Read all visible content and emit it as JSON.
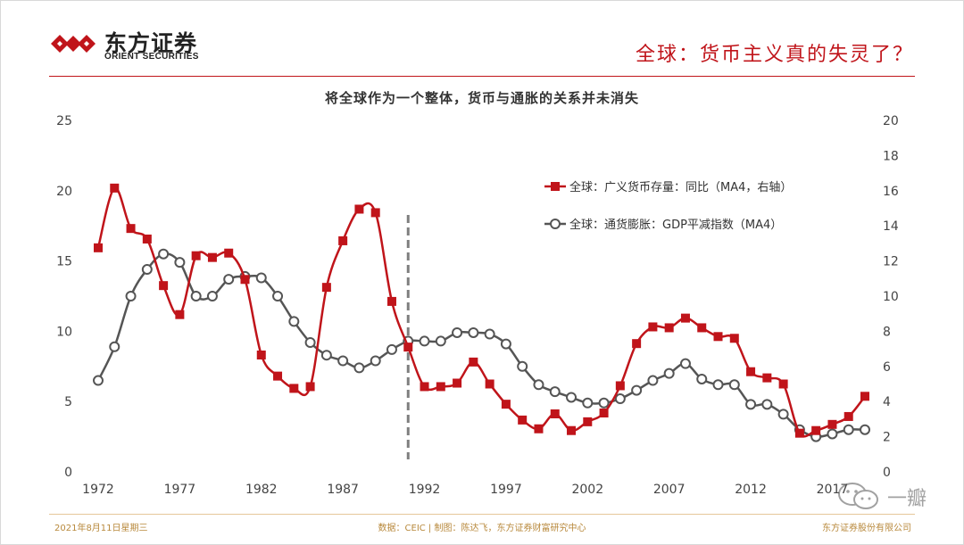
{
  "header": {
    "logo_cn": "东方证券",
    "logo_en": "ORIENT SECURITIES",
    "slide_title": "全球：货币主义真的失灵了？"
  },
  "footer": {
    "date": "2021年8月11日星期三",
    "source": "数据：CEIC | 制图：陈达飞，东方证券财富研究中心",
    "company": "东方证券股份有限公司"
  },
  "watermark": {
    "text": "一瓣"
  },
  "colors": {
    "accent_red": "#c0141a",
    "series_gdp": "#555555",
    "divider": "#7f7f7f",
    "footer_gold": "#b8893c"
  },
  "chart_data": {
    "type": "line",
    "title": "将全球作为一个整体，货币与通胀的关系并未消失",
    "x_tick_labels": [
      "1972",
      "1977",
      "1982",
      "1987",
      "1992",
      "1997",
      "2002",
      "2007",
      "2012",
      "2017"
    ],
    "xlim": [
      1972,
      2019
    ],
    "left_axis": {
      "ylim": [
        0,
        25
      ],
      "ticks": [
        "0",
        "5",
        "10",
        "15",
        "20",
        "25"
      ]
    },
    "right_axis": {
      "ylim": [
        0,
        20
      ],
      "ticks": [
        "0",
        "2",
        "4",
        "6",
        "8",
        "10",
        "12",
        "14",
        "16",
        "18",
        "20"
      ]
    },
    "grid": false,
    "legend_position": "top-right",
    "reference_line_x": 1991,
    "series": [
      {
        "name": "全球：广义货币存量：同比（MA4，右轴）",
        "axis": "right",
        "color": "#c0141a",
        "marker": "square",
        "x": [
          1972,
          1973,
          1974,
          1975,
          1976,
          1977,
          1978,
          1979,
          1980,
          1981,
          1982,
          1983,
          1984,
          1985,
          1986,
          1987,
          1988,
          1989,
          1990,
          1991,
          1992,
          1993,
          1994,
          1995,
          1996,
          1997,
          1998,
          1999,
          2000,
          2001,
          2002,
          2003,
          2004,
          2005,
          2006,
          2007,
          2008,
          2009,
          2010,
          2011,
          2012,
          2013,
          2014,
          2015,
          2016,
          2017,
          2018,
          2019
        ],
        "values": [
          12.75,
          16.15,
          13.85,
          13.25,
          10.6,
          8.95,
          12.3,
          12.2,
          12.45,
          10.95,
          6.65,
          5.45,
          4.75,
          4.85,
          10.5,
          13.15,
          14.95,
          14.75,
          9.7,
          7.1,
          4.85,
          4.85,
          5.05,
          6.25,
          5.0,
          3.85,
          2.95,
          2.45,
          3.3,
          2.35,
          2.85,
          3.35,
          4.9,
          7.3,
          8.25,
          8.2,
          8.75,
          8.2,
          7.7,
          7.6,
          5.7,
          5.35,
          5.0,
          2.2,
          2.35,
          2.7,
          3.15,
          4.3
        ]
      },
      {
        "name": "全球：通货膨胀：GDP平减指数（MA4）",
        "axis": "left",
        "color": "#555555",
        "marker": "circle",
        "x": [
          1972,
          1973,
          1974,
          1975,
          1976,
          1977,
          1978,
          1979,
          1980,
          1981,
          1982,
          1983,
          1984,
          1985,
          1986,
          1987,
          1988,
          1989,
          1990,
          1991,
          1992,
          1993,
          1994,
          1995,
          1996,
          1997,
          1998,
          1999,
          2000,
          2001,
          2002,
          2003,
          2004,
          2005,
          2006,
          2007,
          2008,
          2009,
          2010,
          2011,
          2012,
          2013,
          2014,
          2015,
          2016,
          2017,
          2018,
          2019
        ],
        "values": [
          6.5,
          8.9,
          12.5,
          14.4,
          15.5,
          14.9,
          12.5,
          12.5,
          13.7,
          13.9,
          13.8,
          12.5,
          10.7,
          9.2,
          8.3,
          7.9,
          7.4,
          7.9,
          8.7,
          9.3,
          9.3,
          9.3,
          9.9,
          9.9,
          9.8,
          9.1,
          7.5,
          6.2,
          5.7,
          5.3,
          4.9,
          4.9,
          5.2,
          5.8,
          6.5,
          7.0,
          7.7,
          6.6,
          6.2,
          6.2,
          4.8,
          4.8,
          4.1,
          3.0,
          2.5,
          2.7,
          3.0,
          3.0
        ]
      }
    ]
  }
}
